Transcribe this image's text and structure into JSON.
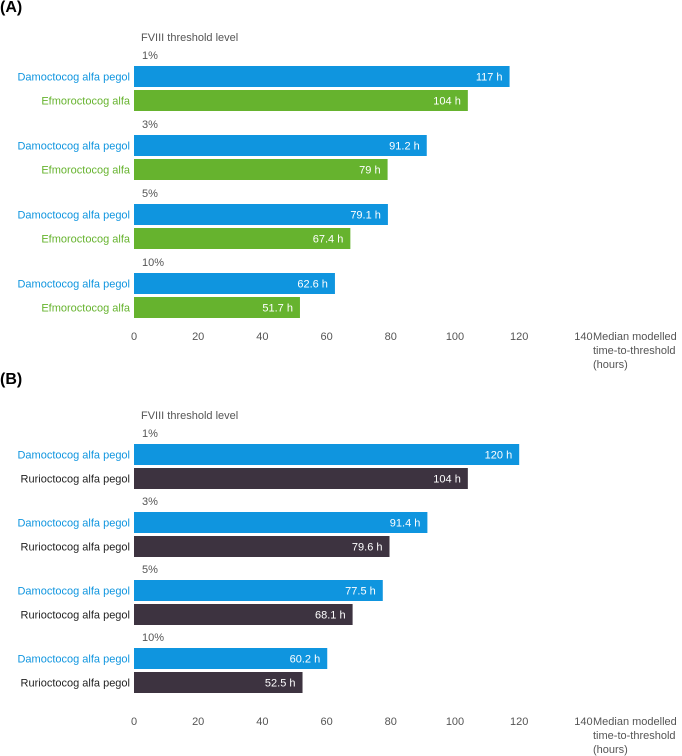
{
  "chart_data": [
    {
      "type": "bar",
      "orientation": "horizontal",
      "panel_label": "(A)",
      "title": "FVIII threshold level",
      "xlabel": [
        "Median modelled",
        "time-to-threshold",
        "(hours)"
      ],
      "xlim": [
        0,
        140
      ],
      "xticks": [
        0,
        20,
        40,
        60,
        80,
        100,
        120,
        140
      ],
      "categories": [
        "1%",
        "3%",
        "5%",
        "10%"
      ],
      "series": [
        {
          "name": "Damoctocog alfa pegol",
          "color": "#0f95df",
          "label_color": "#0f95df",
          "values": [
            117,
            91.2,
            79.1,
            62.6
          ],
          "labels": [
            "117 h",
            "91.2 h",
            "79.1 h",
            "62.6 h"
          ]
        },
        {
          "name": "Efmoroctocog alfa",
          "color": "#66b32e",
          "label_color": "#66b32e",
          "values": [
            104,
            79,
            67.4,
            51.7
          ],
          "labels": [
            "104 h",
            "79 h",
            "67.4 h",
            "51.7 h"
          ]
        }
      ]
    },
    {
      "type": "bar",
      "orientation": "horizontal",
      "panel_label": "(B)",
      "title": "FVIII threshold level",
      "xlabel": [
        "Median modelled",
        "time-to-threshold",
        "(hours)"
      ],
      "xlim": [
        0,
        140
      ],
      "xticks": [
        0,
        20,
        40,
        60,
        80,
        100,
        120,
        140
      ],
      "categories": [
        "1%",
        "3%",
        "5%",
        "10%"
      ],
      "series": [
        {
          "name": "Damoctocog alfa pegol",
          "color": "#0f95df",
          "label_color": "#0f95df",
          "values": [
            120,
            91.4,
            77.5,
            60.2
          ],
          "labels": [
            "120 h",
            "91.4 h",
            "77.5 h",
            "60.2 h"
          ]
        },
        {
          "name": "Rurioctocog alfa pegol",
          "color": "#3d3340",
          "label_color": "#222222",
          "values": [
            104,
            79.6,
            68.1,
            52.5
          ],
          "labels": [
            "104 h",
            "79.6 h",
            "68.1 h",
            "52.5 h"
          ]
        }
      ]
    }
  ]
}
